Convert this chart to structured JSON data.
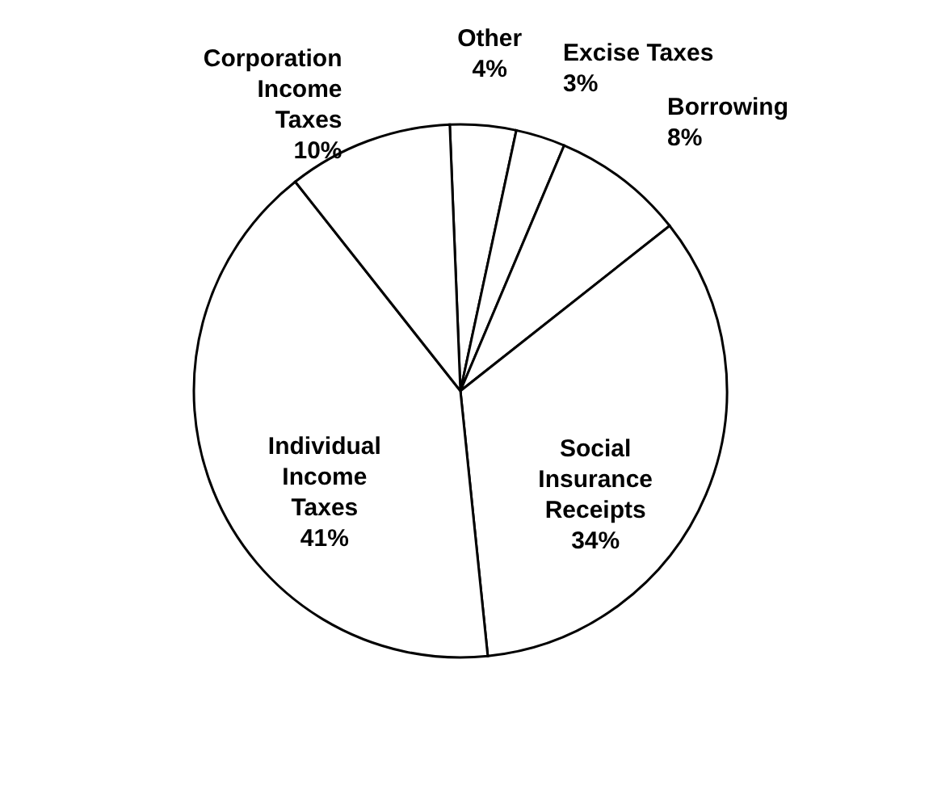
{
  "chart_data": {
    "type": "pie",
    "categories": [
      "Other",
      "Excise Taxes",
      "Borrowing",
      "Social Insurance Receipts",
      "Individual Income Taxes",
      "Corporation Income Taxes"
    ],
    "values": [
      4,
      3,
      8,
      34,
      41,
      10
    ],
    "value_labels": [
      "4%",
      "3%",
      "8%",
      "34%",
      "41%",
      "10%"
    ],
    "colors": [
      "#ffffff",
      "#ffffff",
      "#ffffff",
      "#ffffff",
      "#ffffff",
      "#ffffff"
    ]
  }
}
